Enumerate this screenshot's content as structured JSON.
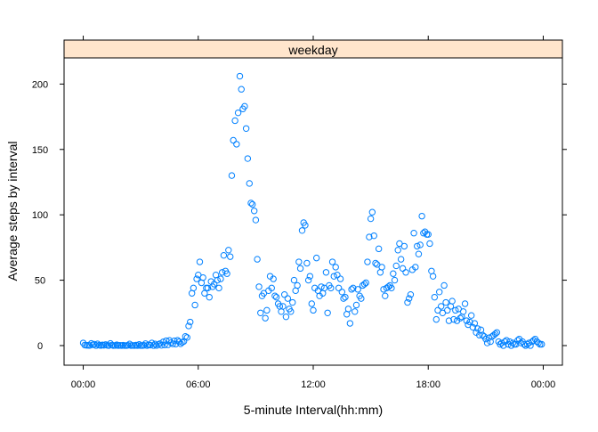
{
  "chart_data": {
    "type": "scatter",
    "title": "",
    "strip_label": "weekday",
    "strip_color": "#FFE5CC",
    "point_color": "#0080FF",
    "xlabel": "5-minute Interval(hh:mm)",
    "ylabel": "Average steps by interval",
    "xlim": [
      -1,
      25
    ],
    "ylim": [
      -15,
      220
    ],
    "x_ticks": [
      {
        "value": 0,
        "label": "00:00"
      },
      {
        "value": 6,
        "label": "06:00"
      },
      {
        "value": 12,
        "label": "12:00"
      },
      {
        "value": 18,
        "label": "18:00"
      },
      {
        "value": 24,
        "label": "00:00"
      }
    ],
    "y_ticks": [
      {
        "value": 0,
        "label": "0"
      },
      {
        "value": 50,
        "label": "50"
      },
      {
        "value": 100,
        "label": "100"
      },
      {
        "value": 150,
        "label": "150"
      },
      {
        "value": 200,
        "label": "200"
      }
    ],
    "grid": false,
    "legend": "none",
    "x_unit": "hours",
    "series": [
      {
        "points": [
          [
            0.0,
            2
          ],
          [
            0.08,
            0.4
          ],
          [
            0.17,
            0.2
          ],
          [
            0.25,
            0.2
          ],
          [
            0.33,
            0.1
          ],
          [
            0.42,
            1.6
          ],
          [
            0.5,
            0.6
          ],
          [
            0.58,
            1
          ],
          [
            0.67,
            0
          ],
          [
            0.75,
            1.3
          ],
          [
            0.83,
            0.3
          ],
          [
            0.92,
            0.1
          ],
          [
            1.0,
            0.5
          ],
          [
            1.08,
            0.2
          ],
          [
            1.17,
            0.8
          ],
          [
            1.25,
            0.2
          ],
          [
            1.33,
            0
          ],
          [
            1.42,
            1.6
          ],
          [
            1.5,
            0.4
          ],
          [
            1.58,
            0
          ],
          [
            1.67,
            0.1
          ],
          [
            1.75,
            0.6
          ],
          [
            1.83,
            0
          ],
          [
            1.92,
            0.2
          ],
          [
            2.0,
            0
          ],
          [
            2.08,
            0.3
          ],
          [
            2.17,
            0
          ],
          [
            2.25,
            0
          ],
          [
            2.33,
            0.2
          ],
          [
            2.42,
            1.2
          ],
          [
            2.5,
            0
          ],
          [
            2.58,
            0.1
          ],
          [
            2.67,
            0
          ],
          [
            2.75,
            0.4
          ],
          [
            2.83,
            0
          ],
          [
            2.92,
            0.9
          ],
          [
            3.0,
            0
          ],
          [
            3.08,
            0
          ],
          [
            3.17,
            0.2
          ],
          [
            3.25,
            1.5
          ],
          [
            3.33,
            0
          ],
          [
            3.42,
            0.6
          ],
          [
            3.5,
            0.3
          ],
          [
            3.58,
            2
          ],
          [
            3.67,
            0
          ],
          [
            3.75,
            1.2
          ],
          [
            3.83,
            0.1
          ],
          [
            3.92,
            0.8
          ],
          [
            4.0,
            1.5
          ],
          [
            4.08,
            0.2
          ],
          [
            4.17,
            2.8
          ],
          [
            4.25,
            0.5
          ],
          [
            4.33,
            3.7
          ],
          [
            4.42,
            0.6
          ],
          [
            4.5,
            3.9
          ],
          [
            4.58,
            2.2
          ],
          [
            4.67,
            1.3
          ],
          [
            4.75,
            3.6
          ],
          [
            4.83,
            1.2
          ],
          [
            4.92,
            4
          ],
          [
            5.0,
            2.9
          ],
          [
            5.08,
            1.4
          ],
          [
            5.17,
            2.5
          ],
          [
            5.25,
            3.2
          ],
          [
            5.33,
            7
          ],
          [
            5.42,
            6.2
          ],
          [
            5.5,
            15
          ],
          [
            5.58,
            18
          ],
          [
            5.67,
            40
          ],
          [
            5.75,
            44
          ],
          [
            5.83,
            31
          ],
          [
            5.92,
            51
          ],
          [
            6.0,
            54
          ],
          [
            6.08,
            64
          ],
          [
            6.17,
            48
          ],
          [
            6.25,
            52
          ],
          [
            6.33,
            40
          ],
          [
            6.42,
            44
          ],
          [
            6.5,
            44
          ],
          [
            6.58,
            37
          ],
          [
            6.67,
            49
          ],
          [
            6.75,
            45
          ],
          [
            6.83,
            47
          ],
          [
            6.92,
            54
          ],
          [
            7.0,
            50
          ],
          [
            7.08,
            44
          ],
          [
            7.17,
            51
          ],
          [
            7.25,
            56
          ],
          [
            7.33,
            69
          ],
          [
            7.42,
            57
          ],
          [
            7.5,
            55
          ],
          [
            7.58,
            73
          ],
          [
            7.67,
            68
          ],
          [
            7.75,
            130
          ],
          [
            7.83,
            157
          ],
          [
            7.92,
            172
          ],
          [
            8.0,
            154
          ],
          [
            8.08,
            178
          ],
          [
            8.17,
            206
          ],
          [
            8.25,
            196
          ],
          [
            8.33,
            181
          ],
          [
            8.42,
            183
          ],
          [
            8.5,
            166
          ],
          [
            8.58,
            143
          ],
          [
            8.67,
            124
          ],
          [
            8.75,
            109
          ],
          [
            8.83,
            108
          ],
          [
            8.92,
            103
          ],
          [
            9.0,
            96
          ],
          [
            9.08,
            66
          ],
          [
            9.17,
            45
          ],
          [
            9.25,
            25
          ],
          [
            9.33,
            38
          ],
          [
            9.42,
            40
          ],
          [
            9.5,
            21
          ],
          [
            9.58,
            27
          ],
          [
            9.67,
            42
          ],
          [
            9.75,
            53
          ],
          [
            9.83,
            44
          ],
          [
            9.92,
            51
          ],
          [
            10.0,
            38
          ],
          [
            10.08,
            37
          ],
          [
            10.17,
            32
          ],
          [
            10.25,
            30
          ],
          [
            10.33,
            26
          ],
          [
            10.42,
            30
          ],
          [
            10.5,
            39
          ],
          [
            10.58,
            22
          ],
          [
            10.67,
            36
          ],
          [
            10.75,
            28
          ],
          [
            10.83,
            26
          ],
          [
            10.92,
            33
          ],
          [
            11.0,
            50
          ],
          [
            11.08,
            42
          ],
          [
            11.17,
            46
          ],
          [
            11.25,
            64
          ],
          [
            11.33,
            59
          ],
          [
            11.42,
            88
          ],
          [
            11.5,
            94
          ],
          [
            11.58,
            92
          ],
          [
            11.67,
            63
          ],
          [
            11.75,
            50
          ],
          [
            11.83,
            53
          ],
          [
            11.92,
            32
          ],
          [
            12.0,
            27
          ],
          [
            12.08,
            44
          ],
          [
            12.17,
            67
          ],
          [
            12.25,
            42
          ],
          [
            12.33,
            38
          ],
          [
            12.42,
            45
          ],
          [
            12.5,
            40
          ],
          [
            12.58,
            44
          ],
          [
            12.67,
            56
          ],
          [
            12.75,
            25
          ],
          [
            12.83,
            46
          ],
          [
            12.92,
            44
          ],
          [
            13.0,
            64
          ],
          [
            13.08,
            53
          ],
          [
            13.17,
            60
          ],
          [
            13.25,
            54
          ],
          [
            13.33,
            44
          ],
          [
            13.42,
            51
          ],
          [
            13.5,
            41
          ],
          [
            13.58,
            36
          ],
          [
            13.67,
            37
          ],
          [
            13.75,
            24
          ],
          [
            13.83,
            28
          ],
          [
            13.92,
            17
          ],
          [
            14.0,
            43
          ],
          [
            14.08,
            44
          ],
          [
            14.17,
            26
          ],
          [
            14.25,
            31
          ],
          [
            14.33,
            43
          ],
          [
            14.42,
            38
          ],
          [
            14.5,
            36
          ],
          [
            14.58,
            46
          ],
          [
            14.67,
            47
          ],
          [
            14.75,
            48
          ],
          [
            14.83,
            64
          ],
          [
            14.92,
            83
          ],
          [
            15.0,
            97
          ],
          [
            15.08,
            102
          ],
          [
            15.17,
            84
          ],
          [
            15.25,
            63
          ],
          [
            15.33,
            62
          ],
          [
            15.42,
            74
          ],
          [
            15.5,
            56
          ],
          [
            15.58,
            60
          ],
          [
            15.67,
            43
          ],
          [
            15.75,
            38
          ],
          [
            15.83,
            44
          ],
          [
            15.92,
            45
          ],
          [
            16.0,
            46
          ],
          [
            16.08,
            44
          ],
          [
            16.17,
            55
          ],
          [
            16.25,
            50
          ],
          [
            16.33,
            61
          ],
          [
            16.42,
            73
          ],
          [
            16.5,
            78
          ],
          [
            16.58,
            66
          ],
          [
            16.67,
            59
          ],
          [
            16.75,
            76
          ],
          [
            16.83,
            56
          ],
          [
            16.92,
            33
          ],
          [
            17.0,
            36
          ],
          [
            17.08,
            39
          ],
          [
            17.17,
            58
          ],
          [
            17.25,
            86
          ],
          [
            17.33,
            60
          ],
          [
            17.42,
            76
          ],
          [
            17.5,
            70
          ],
          [
            17.58,
            77
          ],
          [
            17.67,
            99
          ],
          [
            17.75,
            86
          ],
          [
            17.83,
            87
          ],
          [
            17.92,
            85
          ],
          [
            18.0,
            85
          ],
          [
            18.08,
            78
          ],
          [
            18.17,
            57
          ],
          [
            18.25,
            53
          ],
          [
            18.33,
            37
          ],
          [
            18.42,
            20
          ],
          [
            18.5,
            27
          ],
          [
            18.58,
            41
          ],
          [
            18.67,
            30
          ],
          [
            18.75,
            25
          ],
          [
            18.83,
            46
          ],
          [
            18.92,
            33
          ],
          [
            19.0,
            27
          ],
          [
            19.08,
            19
          ],
          [
            19.17,
            30
          ],
          [
            19.25,
            34
          ],
          [
            19.33,
            20
          ],
          [
            19.42,
            27
          ],
          [
            19.5,
            19
          ],
          [
            19.58,
            28
          ],
          [
            19.67,
            21
          ],
          [
            19.75,
            22
          ],
          [
            19.83,
            26
          ],
          [
            19.92,
            32
          ],
          [
            20.0,
            19
          ],
          [
            20.08,
            16
          ],
          [
            20.17,
            18
          ],
          [
            20.25,
            23
          ],
          [
            20.33,
            14
          ],
          [
            20.42,
            17
          ],
          [
            20.5,
            10
          ],
          [
            20.58,
            13
          ],
          [
            20.67,
            8
          ],
          [
            20.75,
            12
          ],
          [
            20.83,
            8
          ],
          [
            20.92,
            7
          ],
          [
            21.0,
            5
          ],
          [
            21.08,
            2
          ],
          [
            21.17,
            6
          ],
          [
            21.25,
            3
          ],
          [
            21.33,
            7
          ],
          [
            21.42,
            8
          ],
          [
            21.5,
            9
          ],
          [
            21.58,
            10
          ],
          [
            21.67,
            3
          ],
          [
            21.75,
            1
          ],
          [
            21.83,
            2
          ],
          [
            21.92,
            0
          ],
          [
            22.0,
            3
          ],
          [
            22.08,
            4
          ],
          [
            22.17,
            1
          ],
          [
            22.25,
            3
          ],
          [
            22.33,
            0
          ],
          [
            22.42,
            2
          ],
          [
            22.5,
            1
          ],
          [
            22.58,
            1
          ],
          [
            22.67,
            4
          ],
          [
            22.75,
            5
          ],
          [
            22.83,
            2
          ],
          [
            22.92,
            3
          ],
          [
            23.0,
            1
          ],
          [
            23.08,
            0
          ],
          [
            23.17,
            1
          ],
          [
            23.25,
            2
          ],
          [
            23.33,
            0
          ],
          [
            23.42,
            3
          ],
          [
            23.5,
            4
          ],
          [
            23.58,
            5
          ],
          [
            23.67,
            3
          ],
          [
            23.75,
            2
          ],
          [
            23.83,
            1
          ],
          [
            23.92,
            1
          ]
        ]
      }
    ]
  }
}
